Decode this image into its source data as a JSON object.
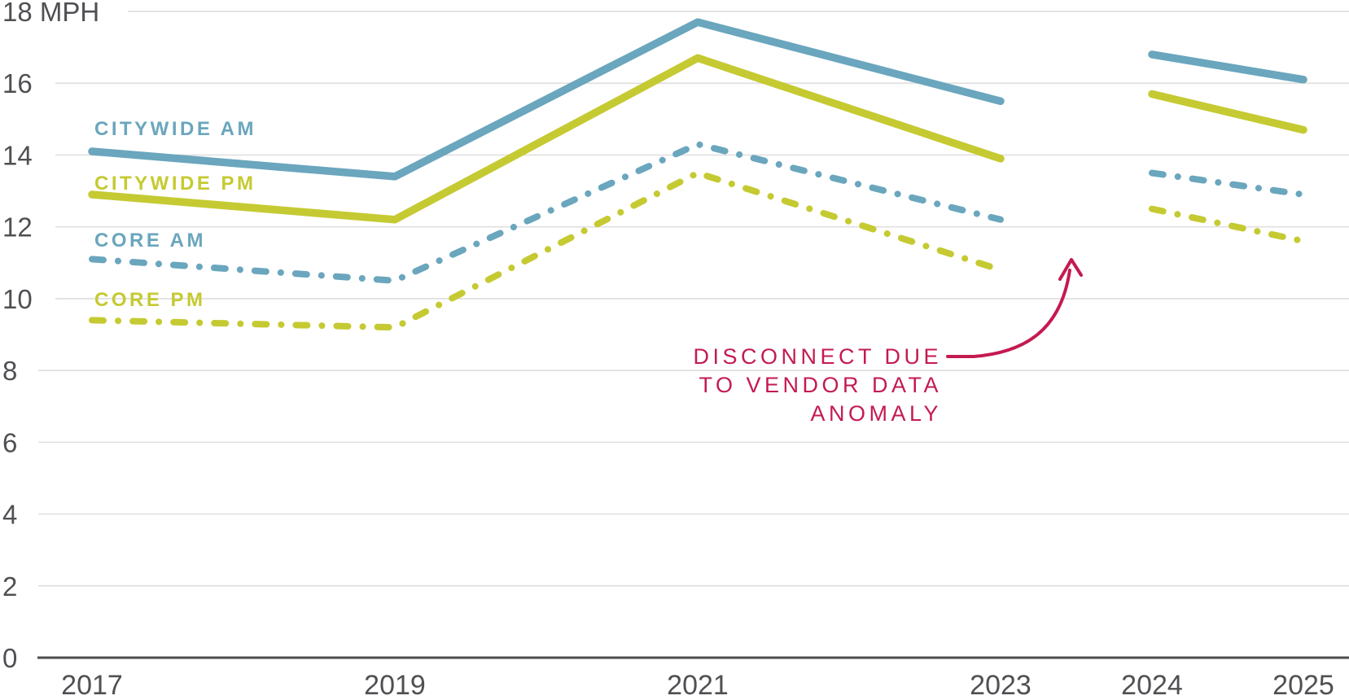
{
  "chart_data": {
    "type": "line",
    "title": "",
    "ylabel": "MPH",
    "ylim": [
      0,
      18
    ],
    "y_tick_step": 2,
    "grid_on": true,
    "grid_color": "#e0e0e0",
    "axis_color": "#4c4d4f",
    "tick_color": "#4f5053",
    "y_ticks": [
      {
        "value": 0,
        "label": "0"
      },
      {
        "value": 2,
        "label": "2"
      },
      {
        "value": 4,
        "label": "4"
      },
      {
        "value": 6,
        "label": "6"
      },
      {
        "value": 8,
        "label": "8"
      },
      {
        "value": 10,
        "label": "10"
      },
      {
        "value": 12,
        "label": "12"
      },
      {
        "value": 14,
        "label": "14"
      },
      {
        "value": 16,
        "label": "16"
      },
      {
        "value": 18,
        "label": "18 MPH"
      }
    ],
    "x_ticks": [
      {
        "value": 2017,
        "label": "2017"
      },
      {
        "value": 2019,
        "label": "2019"
      },
      {
        "value": 2021,
        "label": "2021"
      },
      {
        "value": 2023,
        "label": "2023"
      },
      {
        "value": 2024,
        "label": "2024"
      },
      {
        "value": 2025,
        "label": "2025"
      }
    ],
    "gap_between_years": [
      2023,
      2024
    ],
    "series": [
      {
        "id": "citywide-am",
        "name": "CITYWIDE AM",
        "style": "solid",
        "color": "#6aa6bd",
        "segments": [
          {
            "x": [
              2017,
              2019,
              2021,
              2023
            ],
            "values": [
              14.1,
              13.4,
              17.7,
              15.5
            ]
          },
          {
            "x": [
              2024,
              2025
            ],
            "values": [
              16.8,
              16.1
            ]
          }
        ]
      },
      {
        "id": "citywide-pm",
        "name": "CITYWIDE PM",
        "style": "solid",
        "color": "#c5ca32",
        "segments": [
          {
            "x": [
              2017,
              2019,
              2021,
              2023
            ],
            "values": [
              12.9,
              12.2,
              16.7,
              13.9
            ]
          },
          {
            "x": [
              2024,
              2025
            ],
            "values": [
              15.7,
              14.7
            ]
          }
        ]
      },
      {
        "id": "core-am",
        "name": "CORE AM",
        "style": "dashed",
        "color": "#6aa6bd",
        "segments": [
          {
            "x": [
              2017,
              2019,
              2021,
              2023
            ],
            "values": [
              11.1,
              10.5,
              14.3,
              12.2
            ]
          },
          {
            "x": [
              2024,
              2025
            ],
            "values": [
              13.5,
              12.9
            ]
          }
        ]
      },
      {
        "id": "core-pm",
        "name": "CORE PM",
        "style": "dashed",
        "color": "#c5ca32",
        "segments": [
          {
            "x": [
              2017,
              2019,
              2021,
              2023
            ],
            "values": [
              9.4,
              9.2,
              13.5,
              10.8
            ]
          },
          {
            "x": [
              2024,
              2025
            ],
            "values": [
              12.5,
              11.6
            ]
          }
        ]
      }
    ],
    "annotation": {
      "lines": [
        "DISCONNECT DUE",
        "TO VENDOR DATA",
        "ANOMALY"
      ],
      "color": "#c41a50"
    }
  }
}
